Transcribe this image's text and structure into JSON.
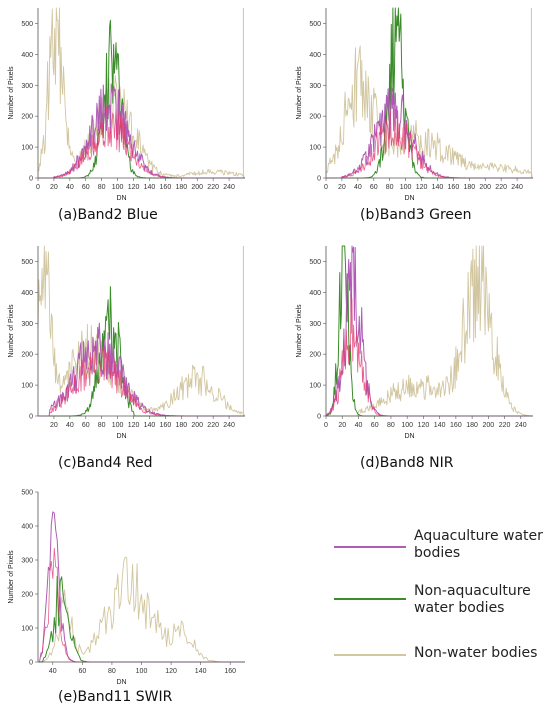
{
  "colors": {
    "aquaculture": "#b05cb5",
    "aquaculture_core": "#e33a70",
    "non_aquaculture": "#3b8c2a",
    "non_water": "#d2c6a0"
  },
  "legend": [
    {
      "key": "aquaculture",
      "label": "Aquaculture water bodies"
    },
    {
      "key": "non_aquaculture",
      "label": "Non-aquaculture water bodies"
    },
    {
      "key": "non_water",
      "label": "Non-water bodies"
    }
  ],
  "chart_data": [
    {
      "id": "a",
      "type": "line",
      "caption": "(a)Band2 Blue",
      "xlabel": "DN",
      "ylabel": "Number of Pixels",
      "xlim": [
        0,
        260
      ],
      "ylim": [
        0,
        550
      ],
      "xticks": [
        0,
        20,
        40,
        60,
        80,
        100,
        120,
        140,
        160,
        180,
        200,
        220,
        240
      ],
      "yticks": [
        0,
        100,
        200,
        300,
        400,
        500
      ],
      "series": [
        {
          "key": "aquaculture",
          "peaks": [
            {
              "x": 90,
              "sd": 24,
              "h": 220
            }
          ],
          "range": [
            20,
            190
          ]
        },
        {
          "key": "non_aquaculture",
          "peaks": [
            {
              "x": 93,
              "sd": 11,
              "h": 360
            }
          ],
          "range": [
            50,
            135
          ]
        },
        {
          "key": "non_water",
          "peaks": [
            {
              "x": 22,
              "sd": 9,
              "h": 480
            },
            {
              "x": 95,
              "sd": 25,
              "h": 240
            },
            {
              "x": 220,
              "sd": 30,
              "h": 20
            }
          ],
          "range": [
            0,
            258
          ],
          "spike": 258
        }
      ]
    },
    {
      "id": "b",
      "type": "line",
      "caption": "(b)Band3 Green",
      "xlabel": "DN",
      "ylabel": "Number of Pixels",
      "xlim": [
        0,
        260
      ],
      "ylim": [
        0,
        550
      ],
      "xticks": [
        0,
        20,
        40,
        60,
        80,
        100,
        120,
        140,
        160,
        180,
        200,
        220,
        240
      ],
      "yticks": [
        0,
        100,
        200,
        300,
        400,
        500
      ],
      "series": [
        {
          "key": "aquaculture",
          "peaks": [
            {
              "x": 85,
              "sd": 23,
              "h": 210
            }
          ],
          "range": [
            20,
            190
          ]
        },
        {
          "key": "non_aquaculture",
          "peaks": [
            {
              "x": 88,
              "sd": 10,
              "h": 440
            }
          ],
          "range": [
            45,
            125
          ]
        },
        {
          "key": "non_water",
          "peaks": [
            {
              "x": 40,
              "sd": 18,
              "h": 270
            },
            {
              "x": 110,
              "sd": 40,
              "h": 130
            },
            {
              "x": 220,
              "sd": 35,
              "h": 30
            }
          ],
          "range": [
            0,
            258
          ],
          "spike": 258
        }
      ]
    },
    {
      "id": "c",
      "type": "line",
      "caption": "(c)Band4 Red",
      "xlabel": "DN",
      "ylabel": "Number of Pixels",
      "xlim": [
        0,
        260
      ],
      "ylim": [
        0,
        550
      ],
      "xticks": [
        20,
        40,
        60,
        80,
        100,
        120,
        140,
        160,
        180,
        200,
        220,
        240
      ],
      "yticks": [
        0,
        100,
        200,
        300,
        400,
        500
      ],
      "series": [
        {
          "key": "aquaculture",
          "peaks": [
            {
              "x": 75,
              "sd": 28,
              "h": 220
            }
          ],
          "range": [
            15,
            190
          ]
        },
        {
          "key": "non_aquaculture",
          "peaks": [
            {
              "x": 90,
              "sd": 12,
              "h": 330
            }
          ],
          "range": [
            40,
            120
          ]
        },
        {
          "key": "non_water",
          "peaks": [
            {
              "x": 8,
              "sd": 8,
              "h": 480
            },
            {
              "x": 70,
              "sd": 30,
              "h": 220
            },
            {
              "x": 200,
              "sd": 25,
              "h": 120
            }
          ],
          "range": [
            0,
            258
          ],
          "spike": 258
        }
      ]
    },
    {
      "id": "d",
      "type": "line",
      "caption": "(d)Band8 NIR",
      "xlabel": "DN",
      "ylabel": "Number of Pixels",
      "xlim": [
        0,
        255
      ],
      "ylim": [
        0,
        550
      ],
      "xticks": [
        0,
        20,
        40,
        60,
        80,
        100,
        120,
        140,
        160,
        180,
        200,
        220,
        240
      ],
      "yticks": [
        0,
        100,
        200,
        300,
        400,
        500
      ],
      "series": [
        {
          "key": "aquaculture",
          "peaks": [
            {
              "x": 33,
              "sd": 11,
              "h": 400
            }
          ],
          "range": [
            0,
            80
          ]
        },
        {
          "key": "non_aquaculture",
          "peaks": [
            {
              "x": 22,
              "sd": 6,
              "h": 480
            }
          ],
          "range": [
            0,
            45
          ]
        },
        {
          "key": "non_water",
          "peaks": [
            {
              "x": 188,
              "sd": 18,
              "h": 420
            },
            {
              "x": 110,
              "sd": 35,
              "h": 100
            }
          ],
          "range": [
            40,
            255
          ]
        }
      ]
    },
    {
      "id": "e",
      "type": "line",
      "caption": "(e)Band11 SWIR",
      "xlabel": "DN",
      "ylabel": "Number of Pixels",
      "xlim": [
        30,
        170
      ],
      "ylim": [
        0,
        500
      ],
      "xticks": [
        40,
        60,
        80,
        100,
        120,
        140,
        160
      ],
      "yticks": [
        0,
        100,
        200,
        300,
        400,
        500
      ],
      "series": [
        {
          "key": "aquaculture",
          "peaks": [
            {
              "x": 41,
              "sd": 4,
              "h": 330
            }
          ],
          "range": [
            32,
            70
          ]
        },
        {
          "key": "non_aquaculture",
          "peaks": [
            {
              "x": 46,
              "sd": 5,
              "h": 210
            }
          ],
          "range": [
            34,
            65
          ]
        },
        {
          "key": "non_water",
          "peaks": [
            {
              "x": 92,
              "sd": 15,
              "h": 220
            },
            {
              "x": 48,
              "sd": 5,
              "h": 150
            },
            {
              "x": 128,
              "sd": 8,
              "h": 70
            }
          ],
          "range": [
            32,
            152
          ]
        }
      ]
    }
  ]
}
